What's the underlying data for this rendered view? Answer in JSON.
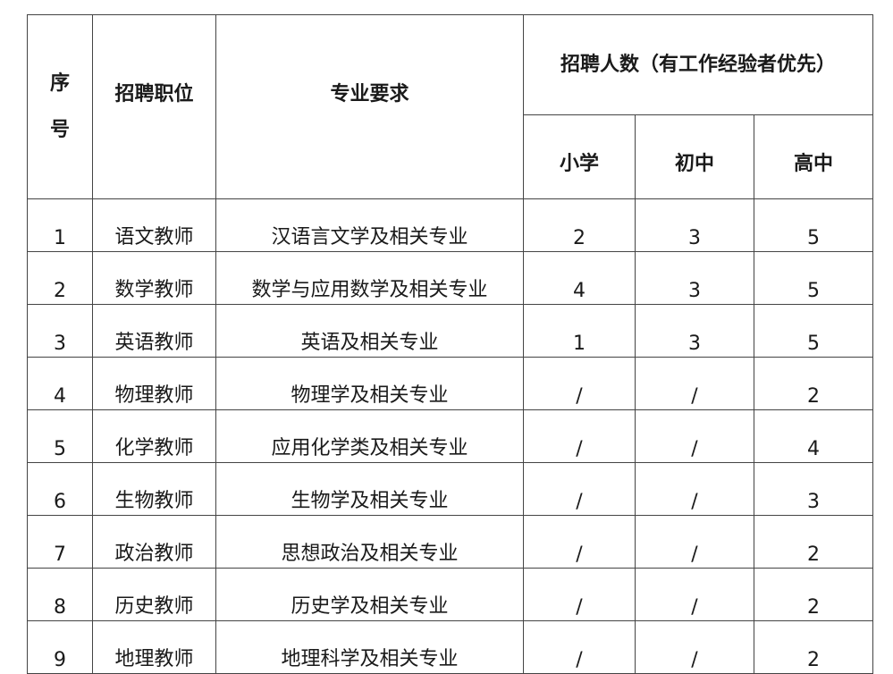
{
  "headers": {
    "seq": "序号",
    "position": "招聘职位",
    "major": "专业要求",
    "count_group": "招聘人数（有工作经验者优先）",
    "primary": "小学",
    "junior": "初中",
    "senior": "高中"
  },
  "rows": [
    {
      "seq": "1",
      "position": "语文教师",
      "major": "汉语言文学及相关专业",
      "primary": "2",
      "junior": "3",
      "senior": "5"
    },
    {
      "seq": "2",
      "position": "数学教师",
      "major": "数学与应用数学及相关专业",
      "primary": "4",
      "junior": "3",
      "senior": "5"
    },
    {
      "seq": "3",
      "position": "英语教师",
      "major": "英语及相关专业",
      "primary": "1",
      "junior": "3",
      "senior": "5"
    },
    {
      "seq": "4",
      "position": "物理教师",
      "major": "物理学及相关专业",
      "primary": "/",
      "junior": "/",
      "senior": "2"
    },
    {
      "seq": "5",
      "position": "化学教师",
      "major": "应用化学类及相关专业",
      "primary": "/",
      "junior": "/",
      "senior": "4"
    },
    {
      "seq": "6",
      "position": "生物教师",
      "major": "生物学及相关专业",
      "primary": "/",
      "junior": "/",
      "senior": "3"
    },
    {
      "seq": "7",
      "position": "政治教师",
      "major": "思想政治及相关专业",
      "primary": "/",
      "junior": "/",
      "senior": "2"
    },
    {
      "seq": "8",
      "position": "历史教师",
      "major": "历史学及相关专业",
      "primary": "/",
      "junior": "/",
      "senior": "2"
    },
    {
      "seq": "9",
      "position": "地理教师",
      "major": "地理科学及相关专业",
      "primary": "/",
      "junior": "/",
      "senior": "2"
    }
  ]
}
